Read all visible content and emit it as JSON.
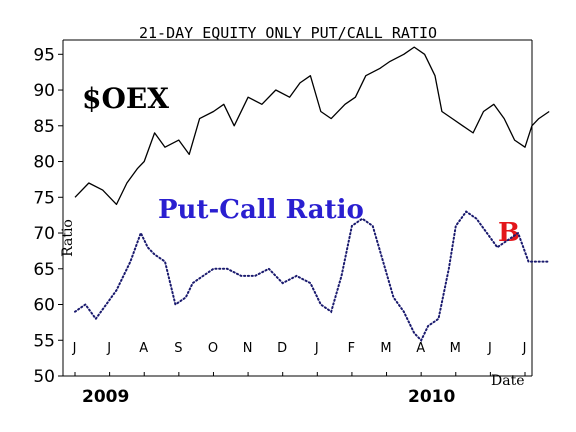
{
  "chart_data": {
    "type": "line",
    "title": "21-DAY EQUITY ONLY PUT/CALL RATIO",
    "ylabel": "Ratio",
    "xlabel": "Date",
    "ylim": [
      50,
      97
    ],
    "y_ticks": [
      50,
      55,
      60,
      65,
      70,
      75,
      80,
      85,
      90,
      95
    ],
    "x_ticks": [
      "J",
      "J",
      "A",
      "S",
      "O",
      "N",
      "D",
      "J",
      "F",
      "M",
      "A",
      "M",
      "J",
      "J"
    ],
    "year_labels": [
      "2009",
      "2010"
    ],
    "annotations": [
      "$OEX",
      "Put-Call Ratio",
      "B"
    ],
    "series": [
      {
        "name": "$OEX",
        "color": "#000000",
        "style": "line",
        "x": [
          0,
          0.4,
          0.8,
          1.2,
          1.5,
          1.8,
          2.0,
          2.3,
          2.6,
          3.0,
          3.3,
          3.6,
          4.0,
          4.3,
          4.6,
          5.0,
          5.4,
          5.8,
          6.2,
          6.5,
          6.8,
          7.1,
          7.4,
          7.8,
          8.1,
          8.4,
          8.8,
          9.1,
          9.5,
          9.8,
          10.1,
          10.4,
          10.6,
          10.9,
          11.2,
          11.5,
          11.8,
          12.1,
          12.4,
          12.7,
          13.0,
          13.2,
          13.4,
          13.7
        ],
        "y": [
          75,
          77,
          76,
          74,
          77,
          79,
          80,
          84,
          82,
          83,
          81,
          86,
          87,
          88,
          85,
          89,
          88,
          90,
          89,
          91,
          92,
          87,
          86,
          88,
          89,
          92,
          93,
          94,
          95,
          96,
          95,
          92,
          87,
          86,
          85,
          84,
          87,
          88,
          86,
          83,
          82,
          85,
          86,
          87
        ]
      },
      {
        "name": "Put-Call Ratio",
        "color": "#1a1a6e",
        "style": "dotted",
        "x": [
          0,
          0.3,
          0.6,
          0.9,
          1.2,
          1.6,
          1.9,
          2.1,
          2.3,
          2.6,
          2.9,
          3.2,
          3.4,
          3.7,
          4.0,
          4.4,
          4.8,
          5.2,
          5.6,
          6.0,
          6.4,
          6.8,
          7.1,
          7.4,
          7.7,
          8.0,
          8.3,
          8.6,
          8.9,
          9.2,
          9.5,
          9.8,
          10.0,
          10.2,
          10.5,
          10.8,
          11.0,
          11.3,
          11.6,
          11.9,
          12.2,
          12.5,
          12.8,
          13.1,
          13.4,
          13.7
        ],
        "y": [
          59,
          60,
          58,
          60,
          62,
          66,
          70,
          68,
          67,
          66,
          60,
          61,
          63,
          64,
          65,
          65,
          64,
          64,
          65,
          63,
          64,
          63,
          60,
          59,
          64,
          71,
          72,
          71,
          66,
          61,
          59,
          56,
          55,
          57,
          58,
          65,
          71,
          73,
          72,
          70,
          68,
          69,
          70,
          66,
          66,
          66
        ]
      }
    ]
  }
}
